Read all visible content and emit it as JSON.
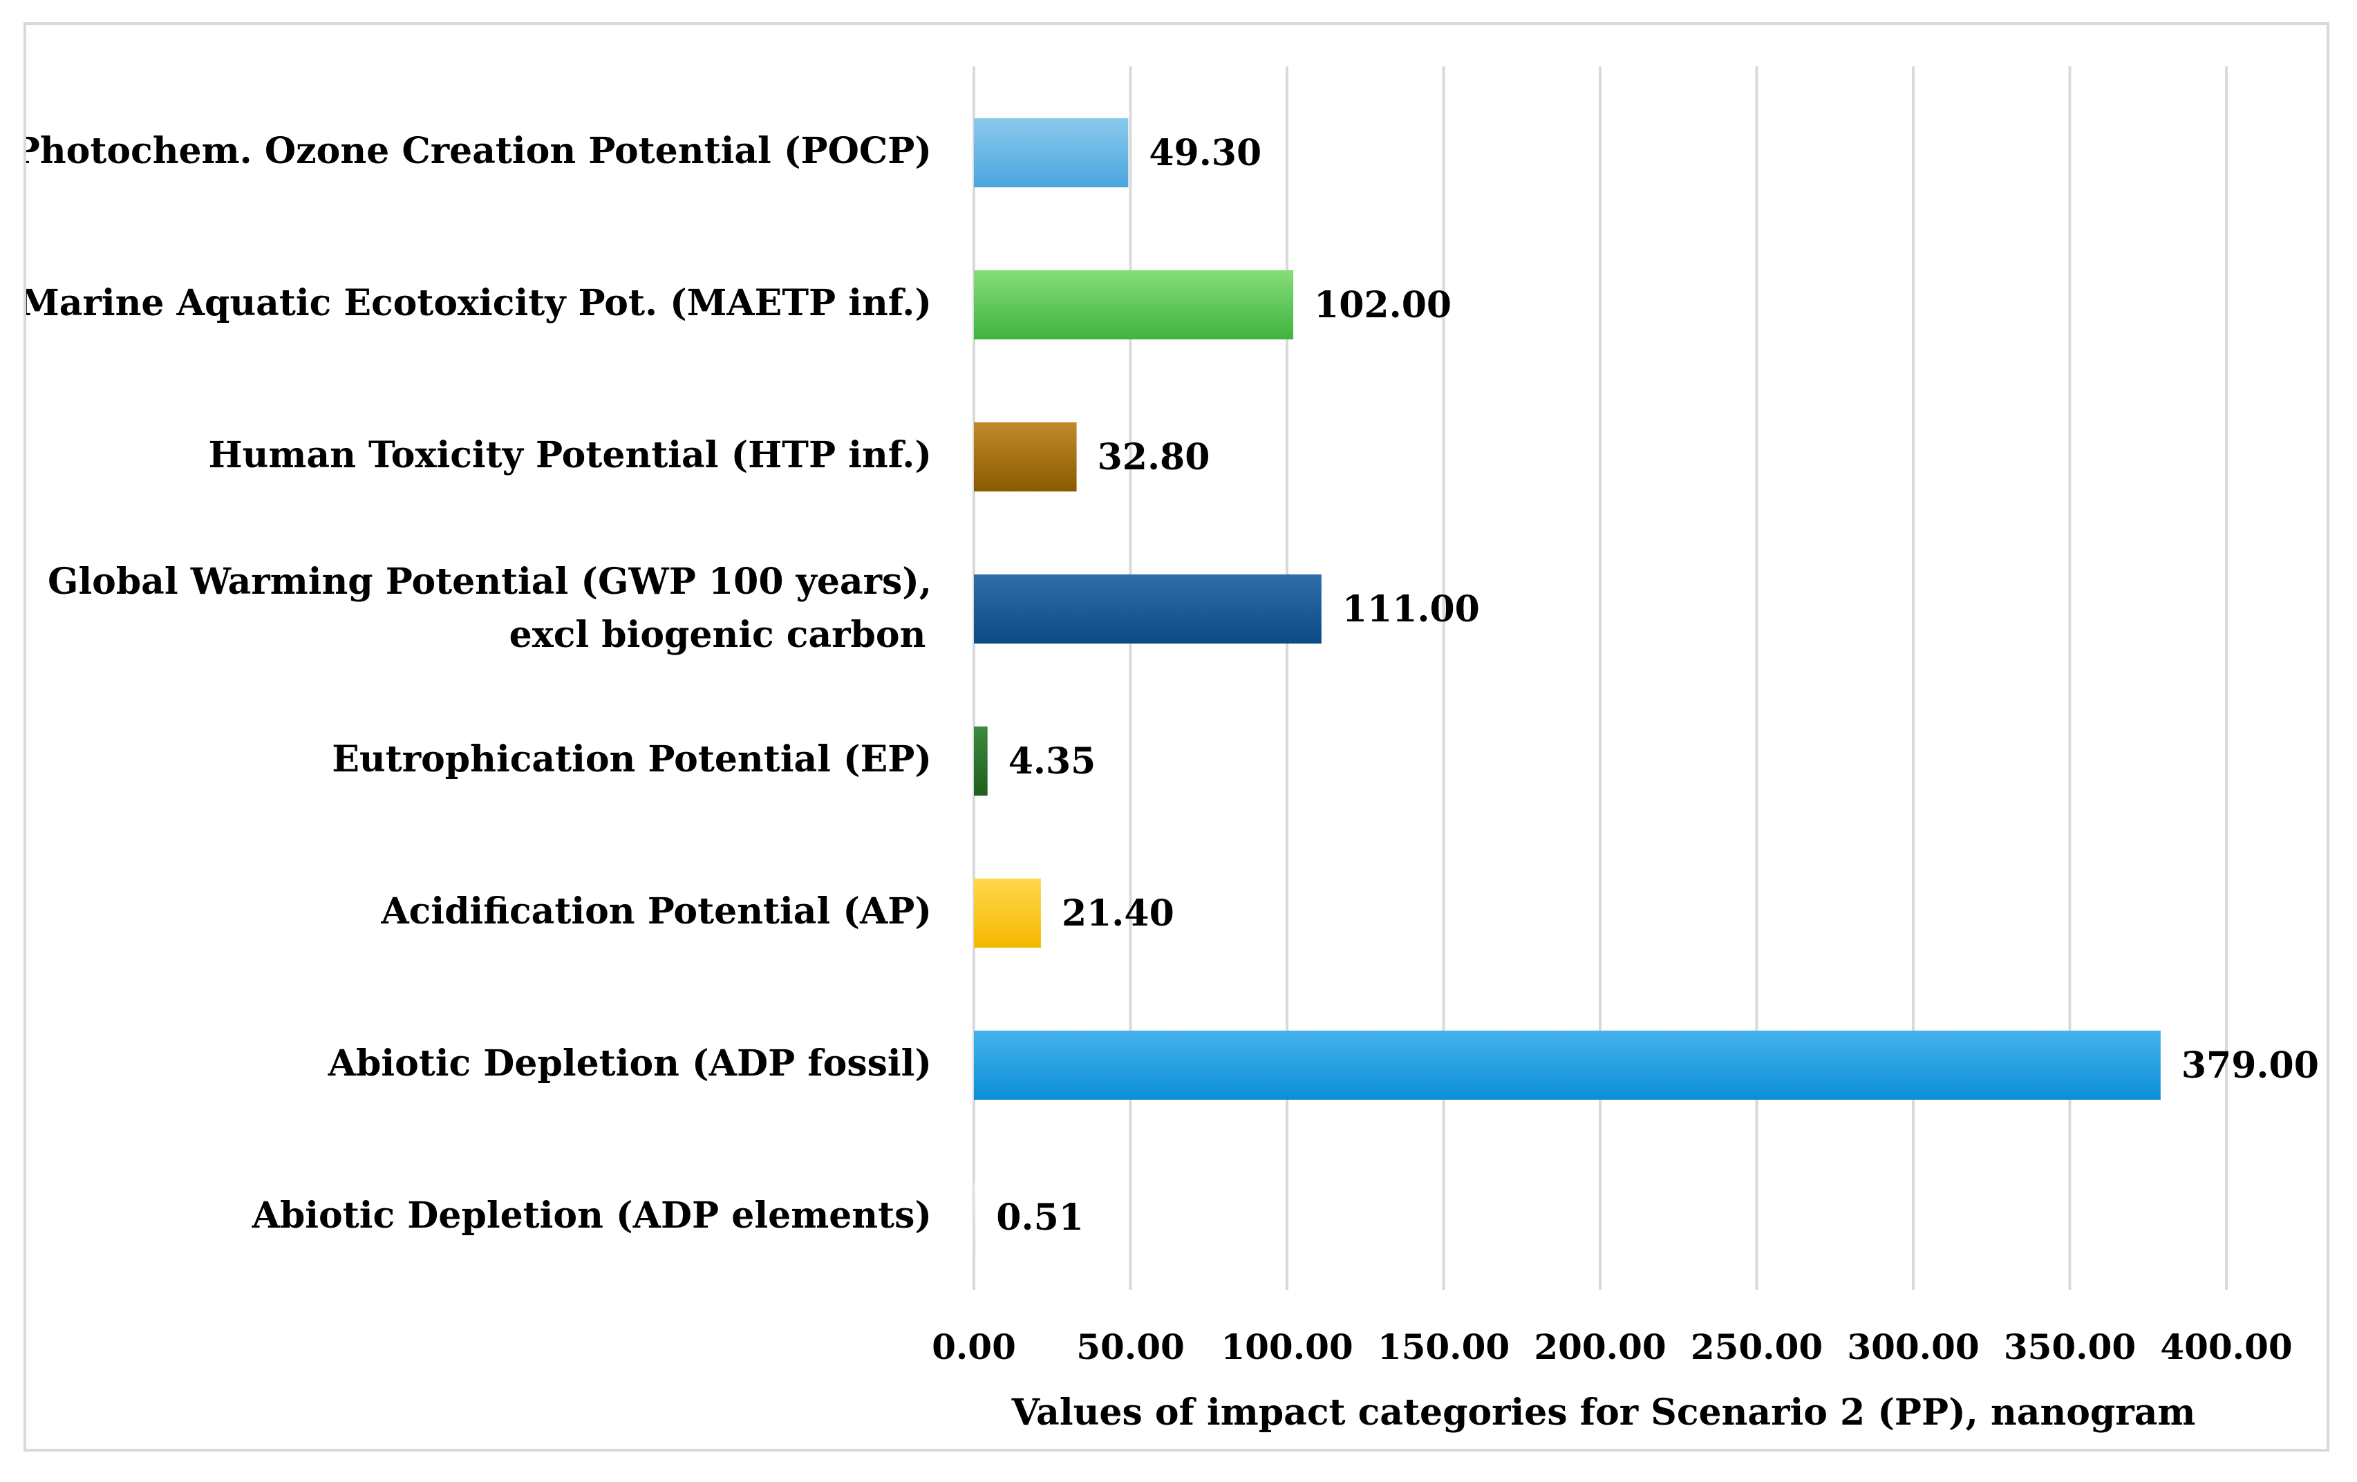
{
  "chart_data": {
    "type": "bar",
    "orientation": "horizontal",
    "title": "",
    "xlabel": "Values of impact categories for Scenario 2 (PP), nanogram",
    "ylabel": "",
    "xlim": [
      0,
      400
    ],
    "x_ticks": [
      "0.00",
      "50.00",
      "100.00",
      "150.00",
      "200.00",
      "250.00",
      "300.00",
      "350.00",
      "400.00"
    ],
    "grid": "vertical",
    "legend": "none",
    "categories": [
      [
        "Photochem. Ozone Creation Potential (POCP)"
      ],
      [
        "Marine Aquatic Ecotoxicity Pot. (MAETP inf.)"
      ],
      [
        "Human Toxicity Potential (HTP inf.)"
      ],
      [
        "Global Warming Potential (GWP 100 years),",
        "excl biogenic carbon"
      ],
      [
        "Eutrophication Potential (EP)"
      ],
      [
        "Acidification Potential (AP)"
      ],
      [
        "Abiotic Depletion (ADP fossil)"
      ],
      [
        "Abiotic Depletion (ADP elements)"
      ]
    ],
    "values": [
      49.3,
      102.0,
      32.8,
      111.0,
      4.35,
      21.4,
      379.0,
      0.51
    ],
    "value_labels": [
      "49.30",
      "102.00",
      "32.80",
      "111.00",
      "4.35",
      "21.40",
      "379.00",
      "0.51"
    ],
    "colors": [
      [
        "#8cc9ee",
        "#4aa6df"
      ],
      [
        "#86dd7a",
        "#3fb43f"
      ],
      [
        "#c08a2a",
        "#8a5a00"
      ],
      [
        "#2f6ea8",
        "#0c4a84"
      ],
      [
        "#3e8a3e",
        "#1f5e1f"
      ],
      [
        "#ffd84a",
        "#f5b800"
      ],
      [
        "#45b2ea",
        "#0a8fd8"
      ],
      [
        "#f2f2f2",
        "#d9d9d9"
      ]
    ]
  }
}
